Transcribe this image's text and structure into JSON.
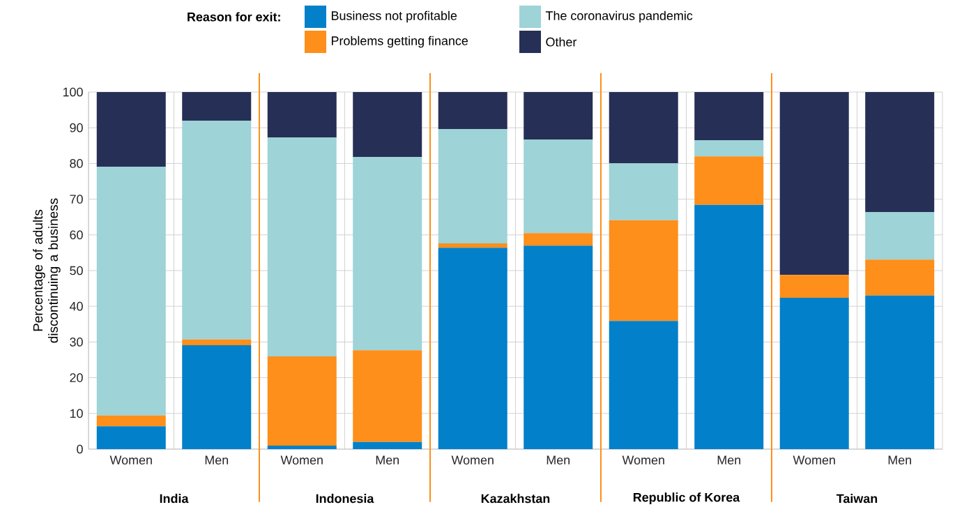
{
  "chart_data": {
    "type": "bar",
    "stacked": true,
    "categories": [
      "Women",
      "Men",
      "Women",
      "Men",
      "Women",
      "Men",
      "Women",
      "Men",
      "Women",
      "Men"
    ],
    "series": [
      {
        "name": "Business not profitable",
        "color": "#0280c9",
        "values": [
          6.4,
          29.1,
          1.0,
          2.0,
          56.4,
          57.0,
          35.9,
          68.4,
          42.4,
          43.0
        ]
      },
      {
        "name": "Problems getting finance",
        "color": "#fd8f1a",
        "values": [
          3.0,
          1.6,
          25.0,
          25.7,
          1.2,
          3.5,
          28.2,
          13.6,
          6.4,
          10.1
        ]
      },
      {
        "name": "The coronavirus pandemic",
        "color": "#9ed3d7",
        "values": [
          69.7,
          61.3,
          61.3,
          54.1,
          32.0,
          26.2,
          16.0,
          4.5,
          0,
          13.3
        ]
      },
      {
        "name": "Other",
        "color": "#262f56",
        "values": [
          20.9,
          8.0,
          12.7,
          18.2,
          10.4,
          13.3,
          19.9,
          13.5,
          51.2,
          33.6
        ]
      }
    ],
    "ylabel": "Percentage of adults discontinuing a business",
    "legend_title": "Reason for exit:",
    "legend": "top",
    "ylim": [
      0,
      100
    ],
    "yticks": [
      0,
      10,
      20,
      30,
      40,
      50,
      60,
      70,
      80,
      90,
      100
    ],
    "grid": true,
    "annotations": [
      "India",
      "Indonesia",
      "Kazakhstan",
      "Republic of Korea",
      "Taiwan"
    ]
  }
}
